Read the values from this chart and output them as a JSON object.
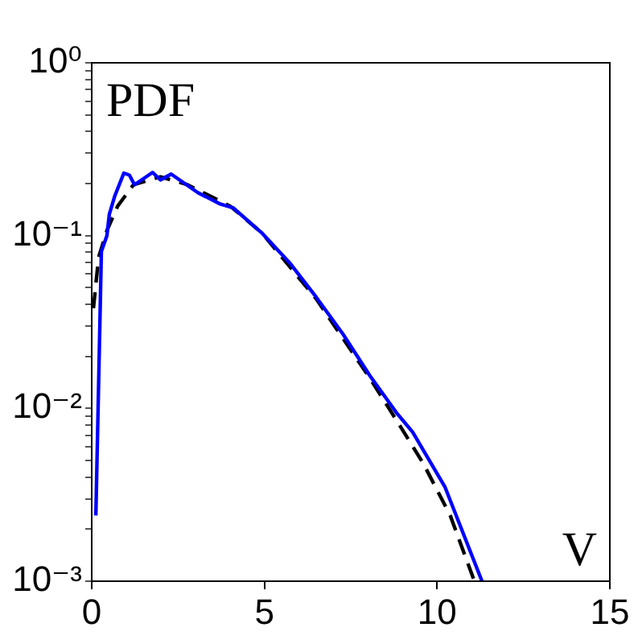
{
  "chart_data": {
    "type": "line",
    "annotations": [
      "PDF",
      "V"
    ],
    "log": "y",
    "grid": false,
    "legend": false,
    "marker": "none",
    "xlim": [
      0,
      15
    ],
    "xticks": [
      0,
      5,
      10,
      15
    ],
    "ylim": [
      0.001,
      1
    ],
    "yticks": [
      {
        "value": 0.001,
        "label": "10⁻³"
      },
      {
        "value": 0.002,
        "label": null
      },
      {
        "value": 0.003,
        "label": null
      },
      {
        "value": 0.004,
        "label": null
      },
      {
        "value": 0.005,
        "label": null
      },
      {
        "value": 0.006,
        "label": null
      },
      {
        "value": 0.007,
        "label": null
      },
      {
        "value": 0.008,
        "label": null
      },
      {
        "value": 0.009,
        "label": null
      },
      {
        "value": 0.01,
        "label": "10⁻²"
      },
      {
        "value": 0.02,
        "label": null
      },
      {
        "value": 0.03,
        "label": null
      },
      {
        "value": 0.04,
        "label": null
      },
      {
        "value": 0.05,
        "label": null
      },
      {
        "value": 0.06,
        "label": null
      },
      {
        "value": 0.07,
        "label": null
      },
      {
        "value": 0.08,
        "label": null
      },
      {
        "value": 0.09,
        "label": null
      },
      {
        "value": 0.1,
        "label": "10⁻¹"
      },
      {
        "value": 0.2,
        "label": null
      },
      {
        "value": 0.3,
        "label": null
      },
      {
        "value": 0.4,
        "label": null
      },
      {
        "value": 0.5,
        "label": null
      },
      {
        "value": 0.6,
        "label": null
      },
      {
        "value": 0.7,
        "label": null
      },
      {
        "value": 0.8,
        "label": null
      },
      {
        "value": 0.9,
        "label": null
      },
      {
        "value": 1,
        "label": "10⁰"
      }
    ],
    "series": [
      {
        "color": "#0000ff",
        "line_style": "solid",
        "x": [
          0.12,
          0.28,
          0.44,
          0.51,
          0.67,
          0.93,
          1.09,
          1.24,
          1.76,
          1.99,
          2.3,
          3.08,
          3.7,
          4.09,
          4.94,
          5.72,
          6.5,
          7.27,
          8.05,
          8.83,
          9.29,
          10.23,
          11.3
        ],
        "values": [
          0.0024,
          0.081,
          0.1,
          0.133,
          0.17,
          0.23,
          0.224,
          0.197,
          0.232,
          0.21,
          0.227,
          0.177,
          0.153,
          0.145,
          0.103,
          0.07,
          0.044,
          0.027,
          0.0155,
          0.0094,
          0.0073,
          0.0035,
          0.001
        ]
      },
      {
        "color": "#000000",
        "line_style": "dashed",
        "x": [
          0.05,
          0.2,
          0.44,
          0.75,
          1.21,
          1.99,
          2.77,
          4.01,
          4.94,
          6.5,
          8.05,
          8.83,
          9.6,
          10.38,
          11.08
        ],
        "values": [
          0.038,
          0.075,
          0.107,
          0.148,
          0.197,
          0.219,
          0.197,
          0.148,
          0.103,
          0.043,
          0.015,
          0.0085,
          0.0048,
          0.0024,
          0.001
        ]
      }
    ]
  }
}
